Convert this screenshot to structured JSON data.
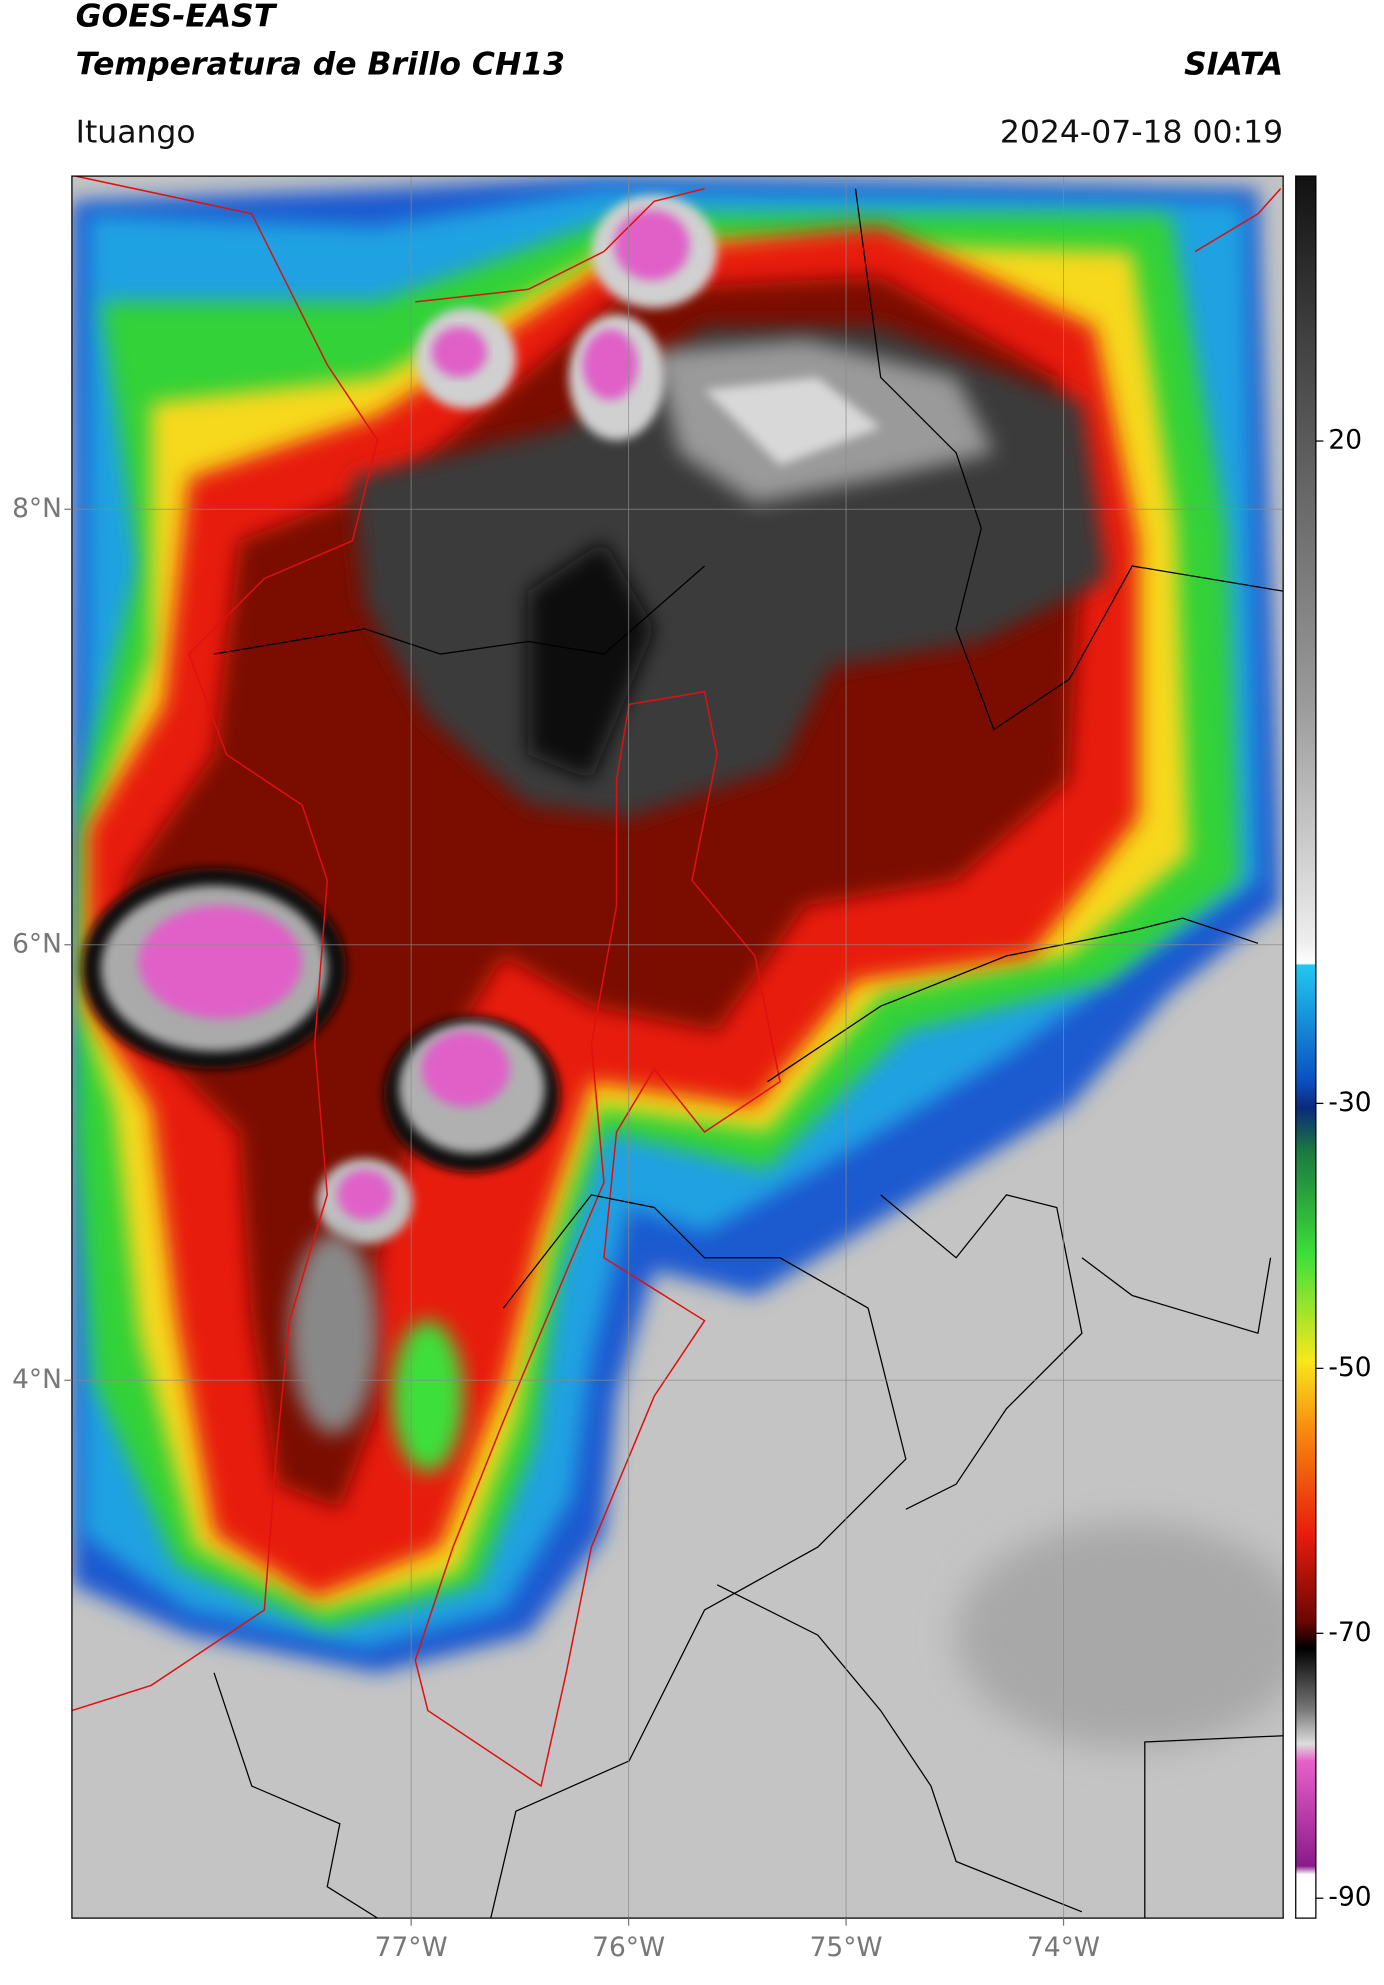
{
  "header": {
    "title": "GOES-EAST",
    "subtitle": "Temperatura de Brillo CH13",
    "source": "SIATA",
    "location": "Ituango",
    "datetime": "2024-07-18 00:19"
  },
  "map": {
    "lonlim": [
      -78.56,
      -72.99
    ],
    "latlim": [
      1.53,
      9.53
    ],
    "lon_ticks": [
      {
        "value": -77,
        "label": "77°W"
      },
      {
        "value": -76,
        "label": "76°W"
      },
      {
        "value": -75,
        "label": "75°W"
      },
      {
        "value": -74,
        "label": "74°W"
      }
    ],
    "lat_ticks": [
      {
        "value": 8,
        "label": "8°N"
      },
      {
        "value": 6,
        "label": "6°N"
      },
      {
        "value": 4,
        "label": "4°N"
      }
    ],
    "grid": true
  },
  "colorbar": {
    "lim": [
      -91.5,
      40
    ],
    "ticks": [
      20,
      -30,
      -50,
      -70,
      -90
    ]
  }
}
